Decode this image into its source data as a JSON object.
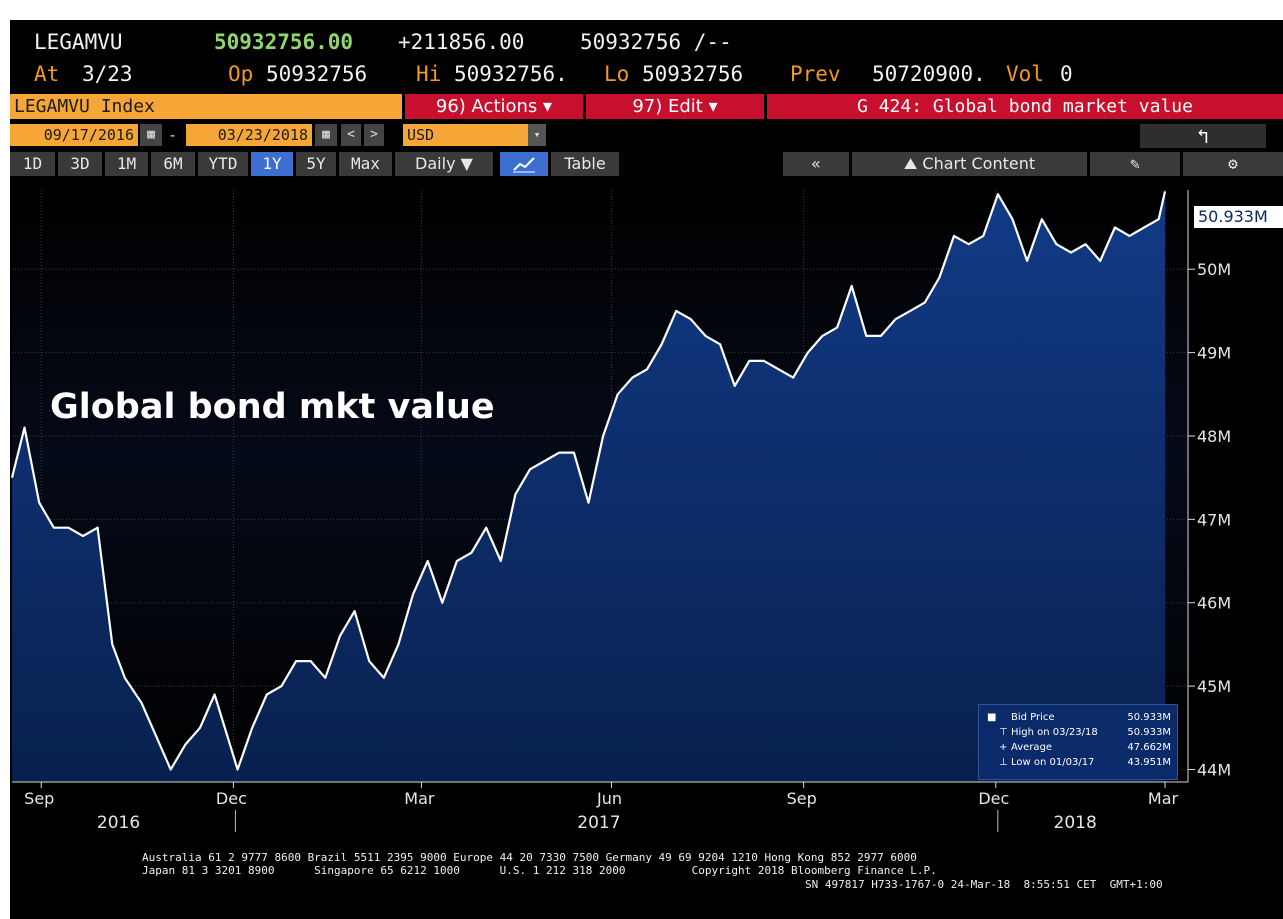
{
  "header": {
    "ticker": "LEGAMVU",
    "last": "50932756.00",
    "change": "+211856.00",
    "bidask": "50932756 /--",
    "at_label": "At",
    "at_date": "3/23",
    "op_label": "Op",
    "op_value": "50932756",
    "hi_label": "Hi",
    "hi_value": "50932756.",
    "lo_label": "Lo",
    "lo_value": "50932756",
    "prev_label": "Prev",
    "prev_value": "50720900.",
    "vol_label": "Vol",
    "vol_value": "0"
  },
  "commandbar": {
    "security": "LEGAMVU Index",
    "actions": "96) Actions",
    "edit": "97) Edit",
    "function": "G 424: Global bond market value"
  },
  "datebar": {
    "start_date": "09/17/2016",
    "end_date": "03/23/2018",
    "currency": "USD"
  },
  "toolbar": {
    "periods": [
      "1D",
      "3D",
      "1M",
      "6M",
      "YTD",
      "1Y",
      "5Y",
      "Max"
    ],
    "selected_period": "1Y",
    "frequency": "Daily",
    "table_label": "Table",
    "chart_content_label": "Chart Content"
  },
  "icons": {
    "calendar": "calendar-icon",
    "back": "back-arrow-icon",
    "collapse": "double-chevron-left-icon",
    "gear": "gear-icon",
    "chart": "line-chart-icon"
  },
  "legend": {
    "rows": [
      {
        "label": "Bid Price",
        "value": "50.933M"
      },
      {
        "label": "High on 03/23/18",
        "value": "50.933M"
      },
      {
        "label": "Average",
        "value": "47.662M"
      },
      {
        "label": "Low on 01/03/17",
        "value": "43.951M"
      }
    ]
  },
  "footer": {
    "line1": "Australia 61 2 9777 8600 Brazil 5511 2395 9000 Europe 44 20 7330 7500 Germany 49 69 9204 1210 Hong Kong 852 2977 6000",
    "line2": "Japan 81 3 3201 8900      Singapore 65 6212 1000      U.S. 1 212 318 2000          Copyright 2018 Bloomberg Finance L.P.",
    "line3": "SN 497817 H733-1767-0 24-Mar-18  8:55:51 CET  GMT+1:00"
  },
  "colors": {
    "orange": "#f29a1e",
    "red": "#c8102e",
    "green": "#8fd66c",
    "area_fill": "#0d2a63",
    "line": "#ffffff"
  },
  "chart_data": {
    "type": "area",
    "title": "Global bond mkt value",
    "y_ticks": [
      "44M",
      "45M",
      "46M",
      "47M",
      "48M",
      "49M",
      "50M"
    ],
    "last_value_label": "50.933M",
    "ylim": [
      43.85,
      50.95
    ],
    "month_ticks": [
      "Sep",
      "Dec",
      "Mar",
      "Jun",
      "Sep",
      "Dec",
      "Mar"
    ],
    "year_labels": [
      "2016",
      "2017",
      "2018"
    ],
    "x": [
      "2016-09-17",
      "2016-09-23",
      "2016-09-30",
      "2016-10-07",
      "2016-10-14",
      "2016-10-21",
      "2016-10-28",
      "2016-11-04",
      "2016-11-10",
      "2016-11-18",
      "2016-11-25",
      "2016-12-02",
      "2016-12-09",
      "2016-12-16",
      "2016-12-23",
      "2017-01-03",
      "2017-01-10",
      "2017-01-17",
      "2017-01-24",
      "2017-01-31",
      "2017-02-07",
      "2017-02-14",
      "2017-02-21",
      "2017-02-28",
      "2017-03-07",
      "2017-03-14",
      "2017-03-21",
      "2017-03-28",
      "2017-04-04",
      "2017-04-11",
      "2017-04-18",
      "2017-04-25",
      "2017-05-02",
      "2017-05-09",
      "2017-05-16",
      "2017-05-23",
      "2017-05-30",
      "2017-06-06",
      "2017-06-13",
      "2017-06-20",
      "2017-06-27",
      "2017-07-04",
      "2017-07-11",
      "2017-07-18",
      "2017-07-25",
      "2017-08-01",
      "2017-08-08",
      "2017-08-15",
      "2017-08-22",
      "2017-08-29",
      "2017-09-05",
      "2017-09-12",
      "2017-09-19",
      "2017-09-26",
      "2017-10-03",
      "2017-10-10",
      "2017-10-17",
      "2017-10-24",
      "2017-10-31",
      "2017-11-07",
      "2017-11-14",
      "2017-11-21",
      "2017-11-28",
      "2017-12-05",
      "2017-12-12",
      "2017-12-19",
      "2017-12-26",
      "2018-01-02",
      "2018-01-09",
      "2018-01-16",
      "2018-01-23",
      "2018-01-30",
      "2018-02-06",
      "2018-02-13",
      "2018-02-20",
      "2018-02-27",
      "2018-03-06",
      "2018-03-13",
      "2018-03-20",
      "2018-03-23"
    ],
    "series": [
      {
        "values": [
          47.5,
          48.1,
          47.2,
          46.9,
          46.9,
          46.8,
          46.9,
          45.5,
          45.1,
          44.8,
          44.4,
          44.0,
          44.3,
          44.5,
          44.9,
          44.0,
          44.5,
          44.9,
          45.0,
          45.3,
          45.3,
          45.1,
          45.6,
          45.9,
          45.3,
          45.1,
          45.5,
          46.1,
          46.5,
          46.0,
          46.5,
          46.6,
          46.9,
          46.5,
          47.3,
          47.6,
          47.7,
          47.8,
          47.8,
          47.2,
          48.0,
          48.5,
          48.7,
          48.8,
          49.1,
          49.5,
          49.4,
          49.2,
          49.1,
          48.6,
          48.9,
          48.9,
          48.8,
          48.7,
          49.0,
          49.2,
          49.3,
          49.8,
          49.2,
          49.2,
          49.4,
          49.5,
          49.6,
          49.9,
          50.4,
          50.3,
          50.4,
          50.9,
          50.6,
          50.1,
          50.6,
          50.3,
          50.2,
          50.3,
          50.1,
          50.5,
          50.4,
          50.5,
          50.6,
          50.933
        ]
      }
    ]
  }
}
